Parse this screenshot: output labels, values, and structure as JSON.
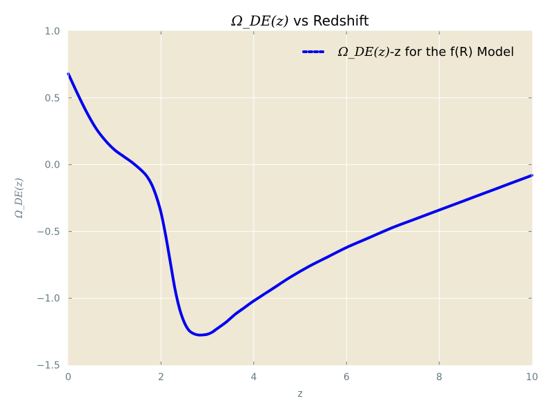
{
  "colors": {
    "background": "#eee8d5",
    "grid": "#ffffff",
    "line": "#0000ee",
    "tick_text": "#657b83"
  },
  "chart_data": {
    "type": "line",
    "title": {
      "math": "Ω_DE(z)",
      "text": " vs Redshift"
    },
    "xlabel": "z",
    "ylabel": "Ω_DE(z)",
    "xlim": [
      0,
      10
    ],
    "ylim": [
      -1.5,
      1.0
    ],
    "xticks": [
      "0",
      "2",
      "4",
      "6",
      "8",
      "10"
    ],
    "yticks": [
      "1.0",
      "0.5",
      "0.0",
      "−0.5",
      "−1.0",
      "−1.5"
    ],
    "grid": true,
    "legend": {
      "position": "top-right",
      "math": "Ω_DE(z)",
      "text": "-z for the f(R) Model"
    },
    "series": [
      {
        "name": "Ω_DE(z)-z for the f(R) Model",
        "x": [
          0,
          0.2,
          0.4,
          0.6,
          0.8,
          1.0,
          1.2,
          1.4,
          1.6,
          1.7,
          1.8,
          1.9,
          2.0,
          2.1,
          2.2,
          2.3,
          2.4,
          2.5,
          2.6,
          2.7,
          2.8,
          2.9,
          3.0,
          3.1,
          3.2,
          3.4,
          3.6,
          3.8,
          4.0,
          4.4,
          4.8,
          5.2,
          5.6,
          6.0,
          6.5,
          7.0,
          7.5,
          8.0,
          8.5,
          9.0,
          9.5,
          10.0
        ],
        "y": [
          0.68,
          0.53,
          0.39,
          0.27,
          0.18,
          0.11,
          0.06,
          0.01,
          -0.05,
          -0.09,
          -0.15,
          -0.24,
          -0.36,
          -0.53,
          -0.73,
          -0.93,
          -1.08,
          -1.18,
          -1.24,
          -1.265,
          -1.275,
          -1.275,
          -1.27,
          -1.255,
          -1.23,
          -1.18,
          -1.12,
          -1.07,
          -1.02,
          -0.93,
          -0.84,
          -0.76,
          -0.69,
          -0.62,
          -0.545,
          -0.47,
          -0.405,
          -0.34,
          -0.275,
          -0.21,
          -0.145,
          -0.08
        ]
      }
    ]
  }
}
